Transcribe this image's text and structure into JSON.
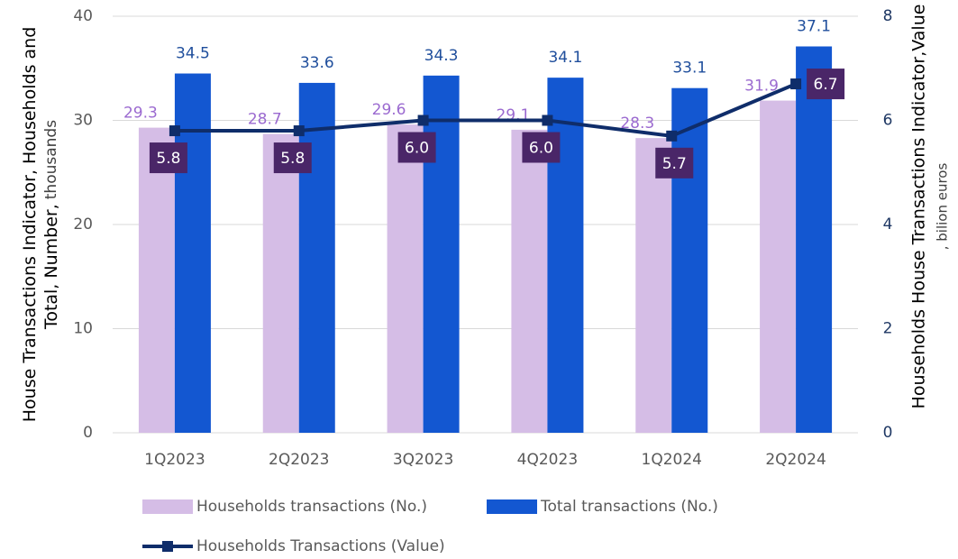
{
  "chart_data": {
    "type": "bar_line",
    "ylabel": [
      "House Transactions Indicator, Households and",
      "Total, Number,",
      "thousands"
    ],
    "y2label": [
      "Households House Transactions Indicator,Value",
      ", bilion euros"
    ],
    "categories": [
      "1Q2023",
      "2Q2023",
      "3Q2023",
      "4Q2023",
      "1Q2024",
      "2Q2024"
    ],
    "series": [
      {
        "name": "Households transactions (No.)",
        "color": "#d5bde6",
        "label_color": "#9b6ad0",
        "kind": "bar",
        "values": [
          29.3,
          28.7,
          29.6,
          29.1,
          28.3,
          31.9
        ]
      },
      {
        "name": "Total transactions (No.)",
        "color": "#1357d1",
        "label_color": "#1f4e9c",
        "kind": "bar",
        "values": [
          34.5,
          33.6,
          34.3,
          34.1,
          33.1,
          37.1
        ]
      },
      {
        "name": "Households Transactions (Value)",
        "color": "#0f2d6a",
        "label_color": "#4a2668",
        "kind": "line",
        "axis": "y2",
        "values": [
          5.8,
          5.8,
          6.0,
          6.0,
          5.7,
          6.7
        ],
        "value_labels": [
          "5.8",
          "5.8",
          "6.0",
          "6.0",
          "5.7",
          "6.7"
        ]
      }
    ],
    "ylim": [
      0,
      40
    ],
    "yticks": [
      0,
      10,
      20,
      30,
      40
    ],
    "y2lim": [
      0,
      8
    ],
    "y2ticks": [
      0,
      2,
      4,
      6,
      8
    ],
    "grid": true
  }
}
